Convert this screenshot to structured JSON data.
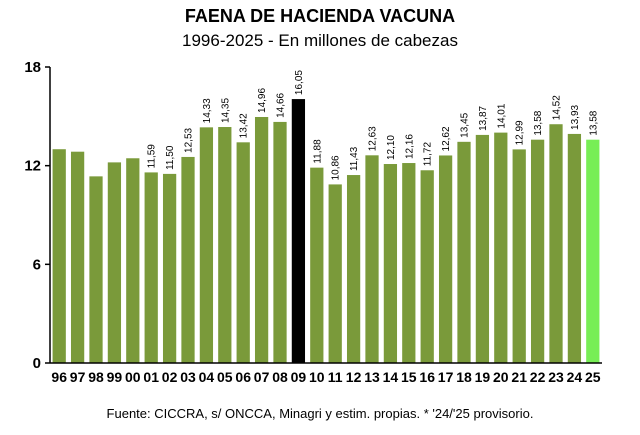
{
  "chart_data": {
    "type": "bar",
    "title": "FAENA DE HACIENDA VACUNA",
    "subtitle": "1996-2025 - En millones de cabezas",
    "note": "Fuente: CICCRA, s/ ONCCA, Minagri y estim. propias. * '24/'25 provisorio.",
    "ylim": [
      0,
      18
    ],
    "yticks": [
      "0",
      "6",
      "12",
      "18"
    ],
    "grid": false,
    "categories": [
      "96",
      "97",
      "98",
      "99",
      "00",
      "01",
      "02",
      "03",
      "04",
      "05",
      "06",
      "07",
      "08",
      "09",
      "10",
      "11",
      "12",
      "13",
      "14",
      "15",
      "16",
      "17",
      "18",
      "19",
      "20",
      "21",
      "22",
      "23",
      "24",
      "25"
    ],
    "values": [
      13.0,
      12.85,
      11.35,
      12.2,
      12.45,
      11.59,
      11.5,
      12.53,
      14.33,
      14.35,
      13.42,
      14.96,
      14.66,
      16.05,
      11.88,
      10.86,
      11.43,
      12.63,
      12.1,
      12.16,
      11.72,
      12.62,
      13.45,
      13.87,
      14.01,
      12.99,
      13.58,
      14.52,
      13.93,
      13.58
    ],
    "data_labels": [
      "",
      "",
      "",
      "",
      "",
      "11,59",
      "11,50",
      "12,53",
      "14,33",
      "14,35",
      "13,42",
      "14,96",
      "14,66",
      "16,05",
      "11,88",
      "10,86",
      "11,43",
      "12,63",
      "12,10",
      "12,16",
      "11,72",
      "12,62",
      "13,45",
      "13,87",
      "14,01",
      "12,99",
      "13,58",
      "14,52",
      "13,93",
      "13,58"
    ],
    "colors": {
      "default": "#7a9a3a",
      "highlight": "#000000",
      "last": "#77ee55",
      "axis": "#000000"
    },
    "highlight_index": 13,
    "last_index": 29
  }
}
